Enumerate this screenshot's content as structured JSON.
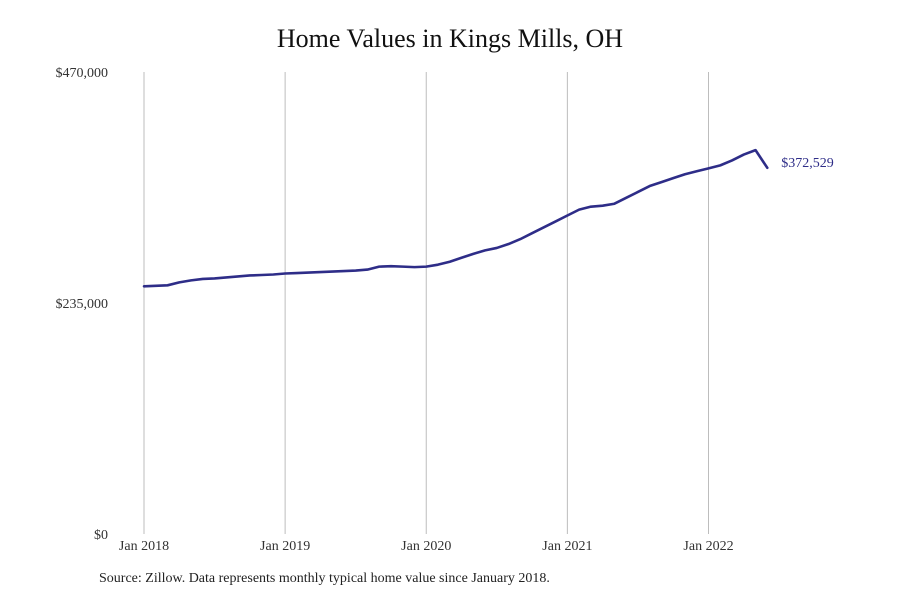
{
  "chart_data": {
    "type": "line",
    "title": "Home Values in Kings Mills, OH",
    "xlabel": "",
    "ylabel": "",
    "ylim": [
      0,
      470000
    ],
    "yticks": [
      {
        "value": 0,
        "label": "$0"
      },
      {
        "value": 235000,
        "label": "$235,000"
      },
      {
        "value": 470000,
        "label": "$470,000"
      }
    ],
    "xticks": [
      {
        "month_index": 0,
        "label": "Jan 2018"
      },
      {
        "month_index": 12,
        "label": "Jan 2019"
      },
      {
        "month_index": 24,
        "label": "Jan 2020"
      },
      {
        "month_index": 36,
        "label": "Jan 2021"
      },
      {
        "month_index": 48,
        "label": "Jan 2022"
      }
    ],
    "grid": "vertical",
    "line_color": "#2e2d88",
    "end_label": "$372,529",
    "series": [
      {
        "start": "Jan 2018",
        "frequency": "monthly",
        "values": [
          252000,
          252500,
          253000,
          256000,
          258000,
          259500,
          260000,
          261000,
          262000,
          263000,
          263500,
          264000,
          265000,
          265500,
          266000,
          266500,
          267000,
          267500,
          268000,
          269000,
          272000,
          272500,
          272000,
          271500,
          272000,
          274000,
          277000,
          281000,
          285000,
          288500,
          291000,
          295000,
          300000,
          306000,
          312000,
          318000,
          324000,
          330000,
          333000,
          334000,
          336000,
          342000,
          348000,
          354000,
          358000,
          362000,
          366000,
          369000,
          372000,
          375000,
          380000,
          386000,
          390500,
          372529
        ]
      }
    ]
  },
  "source_note": "Source: Zillow. Data represents monthly typical home value since January 2018."
}
